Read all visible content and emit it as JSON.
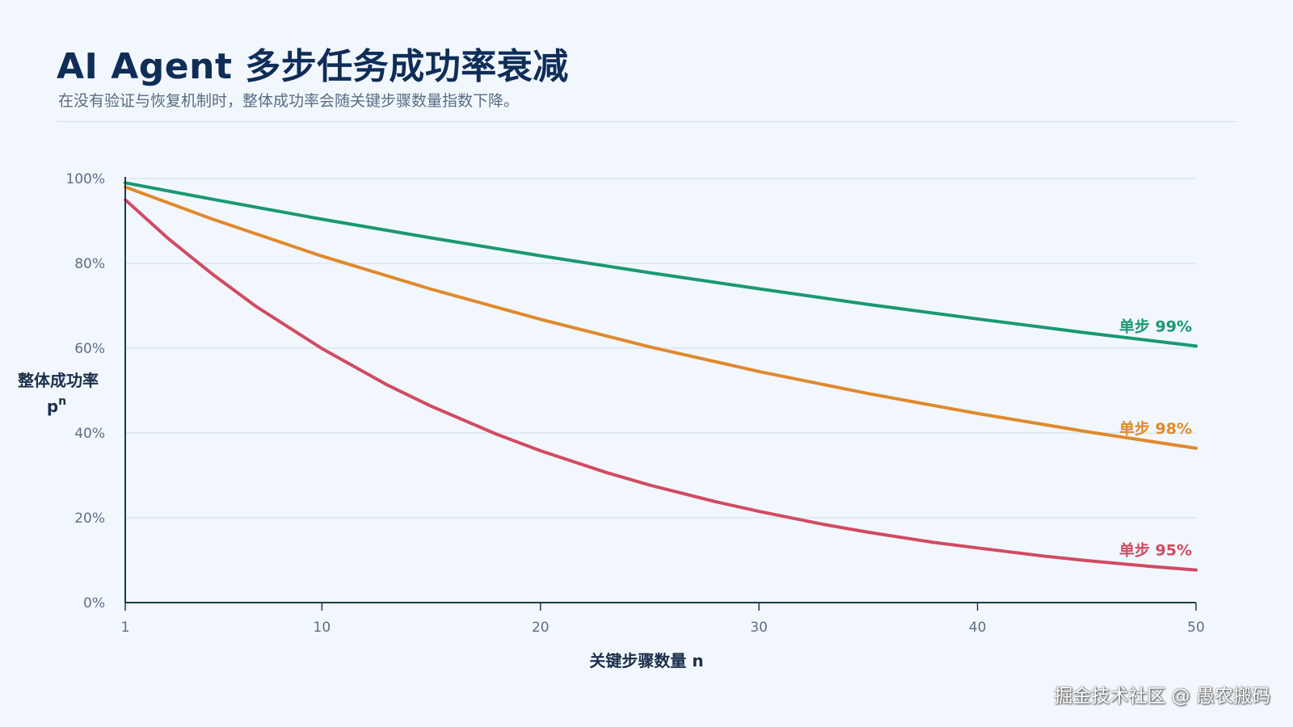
{
  "header": {
    "title": "AI Agent 多步任务成功率衰减",
    "subtitle": "在没有验证与恢复机制时，整体成功率会随关键步骤数量指数下降。"
  },
  "watermark": "掘金技术社区 @ 愚农搬码",
  "chart_data": {
    "type": "line",
    "title": "",
    "xlabel": "关键步骤数量 n",
    "ylabel_line1": "整体成功率",
    "ylabel_base": "p",
    "ylabel_sup": "n",
    "xlim": [
      1,
      50
    ],
    "ylim": [
      0,
      1
    ],
    "x_ticks": [
      1,
      10,
      20,
      30,
      40,
      50
    ],
    "x_tick_labels": [
      "1",
      "10",
      "20",
      "30",
      "40",
      "50"
    ],
    "y_ticks": [
      0,
      0.2,
      0.4,
      0.6,
      0.8,
      1.0
    ],
    "y_tick_labels": [
      "0%",
      "20%",
      "40%",
      "60%",
      "80%",
      "100%"
    ],
    "grid": "horizontal",
    "series": [
      {
        "name": "单步 99%",
        "color": "#1a9872",
        "x": [
          1,
          5,
          10,
          15,
          20,
          25,
          30,
          35,
          40,
          45,
          50
        ],
        "y": [
          0.99,
          0.951,
          0.904,
          0.86,
          0.818,
          0.778,
          0.74,
          0.703,
          0.669,
          0.636,
          0.605
        ]
      },
      {
        "name": "单步 98%",
        "color": "#e0892c",
        "x": [
          1,
          5,
          10,
          15,
          20,
          25,
          30,
          35,
          40,
          45,
          50
        ],
        "y": [
          0.98,
          0.904,
          0.817,
          0.739,
          0.668,
          0.603,
          0.545,
          0.493,
          0.446,
          0.403,
          0.364
        ]
      },
      {
        "name": "单步 95%",
        "color": "#d14b62",
        "x": [
          1,
          3,
          5,
          7,
          10,
          13,
          15,
          18,
          20,
          23,
          25,
          28,
          30,
          33,
          35,
          38,
          40,
          43,
          45,
          48,
          50
        ],
        "y": [
          0.95,
          0.857,
          0.774,
          0.698,
          0.599,
          0.513,
          0.463,
          0.397,
          0.358,
          0.307,
          0.277,
          0.238,
          0.215,
          0.184,
          0.166,
          0.142,
          0.129,
          0.11,
          0.099,
          0.085,
          0.077
        ]
      }
    ]
  }
}
